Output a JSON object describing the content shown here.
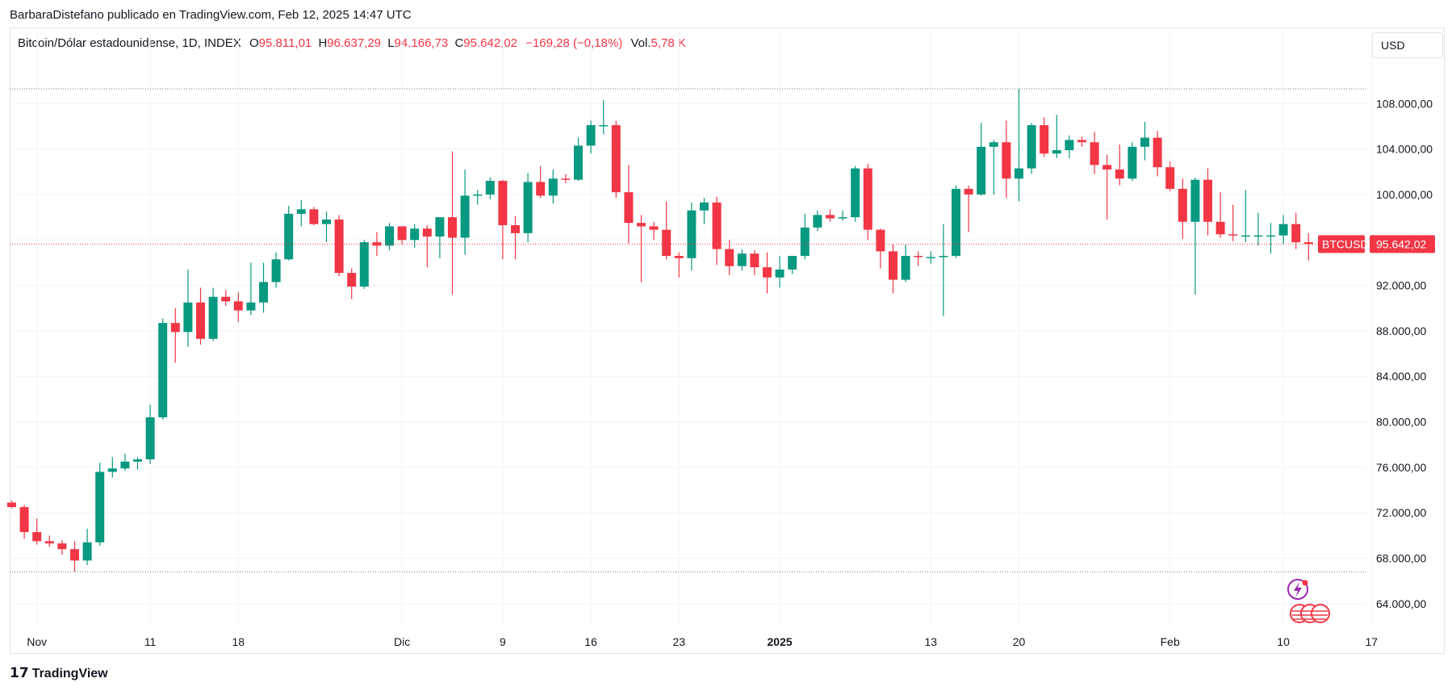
{
  "header": {
    "published": "BarbaraDistefano publicado en TradingView.com, Feb 12, 2025 14:47 UTC",
    "symbol": "Bitcoin/Dólar estadounidense, 1D, INDEX",
    "o_label": "O",
    "o_value": "95.811,01",
    "h_label": "H",
    "h_value": "96.637,29",
    "l_label": "L",
    "l_value": "94.166,73",
    "c_label": "C",
    "c_value": "95.642,02",
    "change": "−169,28 (−0,18%)",
    "vol_label": "Vol.",
    "vol_value": "5,78 K"
  },
  "currency": "USD",
  "footer": {
    "brand": "TradingView"
  },
  "colors": {
    "up": "#089981",
    "down": "#f23645",
    "grid": "#f0f3fa",
    "text": "#131722"
  },
  "chart_data": {
    "type": "candlestick",
    "symbol_label": "BTCUSD",
    "last_price_label": "95.642,02",
    "last_price": 95642.02,
    "ylim": [
      62000,
      112000
    ],
    "y_ticks": [
      64000,
      68000,
      72000,
      76000,
      80000,
      84000,
      88000,
      92000,
      96000,
      100000,
      104000,
      108000
    ],
    "y_tick_labels": [
      "64.000,00",
      "68.000,00",
      "72.000,00",
      "76.000,00",
      "80.000,00",
      "84.000,00",
      "88.000,00",
      "92.000,00",
      "96.000,00",
      "100.000,00",
      "104.000,00",
      "108.000,00"
    ],
    "x_labels": [
      {
        "text": "Nov",
        "day": 2,
        "bold": false
      },
      {
        "text": "11",
        "day": 11,
        "bold": false
      },
      {
        "text": "18",
        "day": 18,
        "bold": false
      },
      {
        "text": "Dic",
        "day": 31,
        "bold": false
      },
      {
        "text": "9",
        "day": 39,
        "bold": false
      },
      {
        "text": "16",
        "day": 46,
        "bold": false
      },
      {
        "text": "23",
        "day": 53,
        "bold": false
      },
      {
        "text": "2025",
        "day": 61,
        "bold": true
      },
      {
        "text": "13",
        "day": 73,
        "bold": false
      },
      {
        "text": "20",
        "day": 80,
        "bold": false
      },
      {
        "text": "Feb",
        "day": 92,
        "bold": false
      },
      {
        "text": "10",
        "day": 101,
        "bold": false
      },
      {
        "text": "17",
        "day": 108,
        "bold": false
      }
    ],
    "range_high": 109300,
    "range_low": 66800,
    "candles": [
      [
        72900,
        73100,
        72400,
        72500
      ],
      [
        72500,
        72700,
        69700,
        70300
      ],
      [
        70300,
        71500,
        69200,
        69500
      ],
      [
        69500,
        70000,
        69000,
        69300
      ],
      [
        69300,
        69600,
        68300,
        68800
      ],
      [
        68800,
        69500,
        66800,
        67800
      ],
      [
        67800,
        70600,
        67400,
        69400
      ],
      [
        69400,
        76400,
        69100,
        75600
      ],
      [
        75600,
        76900,
        75100,
        75900
      ],
      [
        75900,
        77200,
        75700,
        76500
      ],
      [
        76500,
        76900,
        75800,
        76700
      ],
      [
        76700,
        81500,
        76300,
        80400
      ],
      [
        80400,
        89100,
        80200,
        88700
      ],
      [
        88700,
        90000,
        85200,
        87900
      ],
      [
        87900,
        93400,
        86600,
        90500
      ],
      [
        90500,
        91800,
        86800,
        87300
      ],
      [
        87300,
        91800,
        87100,
        91000
      ],
      [
        91000,
        91600,
        90200,
        90600
      ],
      [
        90600,
        91400,
        88800,
        89800
      ],
      [
        89800,
        94000,
        89400,
        90500
      ],
      [
        90500,
        94000,
        89600,
        92300
      ],
      [
        92300,
        94900,
        91800,
        94300
      ],
      [
        94300,
        99000,
        94200,
        98300
      ],
      [
        98300,
        99500,
        97200,
        98700
      ],
      [
        98700,
        98900,
        97300,
        97400
      ],
      [
        97400,
        98500,
        95800,
        97800
      ],
      [
        97800,
        98200,
        92800,
        93100
      ],
      [
        93100,
        93500,
        90800,
        91900
      ],
      [
        91900,
        96000,
        91700,
        95800
      ],
      [
        95800,
        96700,
        94600,
        95500
      ],
      [
        95500,
        97500,
        95100,
        97200
      ],
      [
        97200,
        97200,
        95600,
        96000
      ],
      [
        96000,
        97400,
        95300,
        97000
      ],
      [
        97000,
        97300,
        93600,
        96300
      ],
      [
        96300,
        98000,
        94400,
        98000
      ],
      [
        98000,
        103800,
        91200,
        96200
      ],
      [
        96200,
        102200,
        94700,
        99900
      ],
      [
        99900,
        100400,
        99100,
        100000
      ],
      [
        100000,
        101500,
        99600,
        101200
      ],
      [
        101200,
        101300,
        94300,
        97300
      ],
      [
        97300,
        98100,
        94300,
        96600
      ],
      [
        96600,
        101900,
        95800,
        101100
      ],
      [
        101100,
        102500,
        99700,
        99900
      ],
      [
        99900,
        102200,
        99200,
        101400
      ],
      [
        101400,
        101800,
        101000,
        101300
      ],
      [
        101300,
        105000,
        101200,
        104300
      ],
      [
        104300,
        106500,
        103600,
        106100
      ],
      [
        106100,
        108300,
        105300,
        106100
      ],
      [
        106100,
        106500,
        99700,
        100200
      ],
      [
        100200,
        102600,
        95700,
        97500
      ],
      [
        97500,
        98200,
        92300,
        97200
      ],
      [
        97200,
        97600,
        96000,
        96900
      ],
      [
        96900,
        99400,
        94300,
        94600
      ],
      [
        94600,
        94900,
        92700,
        94400
      ],
      [
        94400,
        99300,
        93300,
        98600
      ],
      [
        98600,
        99700,
        97400,
        99300
      ],
      [
        99300,
        99800,
        93800,
        95200
      ],
      [
        95200,
        96000,
        92900,
        93700
      ],
      [
        93700,
        95200,
        93300,
        94800
      ],
      [
        94800,
        95100,
        92900,
        93600
      ],
      [
        93600,
        94900,
        91300,
        92700
      ],
      [
        92700,
        94600,
        91800,
        93400
      ],
      [
        93400,
        94600,
        93000,
        94600
      ],
      [
        94600,
        98300,
        94300,
        97100
      ],
      [
        97100,
        98600,
        96800,
        98200
      ],
      [
        98200,
        98700,
        97600,
        97900
      ],
      [
        97900,
        98600,
        97700,
        98000
      ],
      [
        98000,
        102500,
        97600,
        102300
      ],
      [
        102300,
        102700,
        96000,
        96900
      ],
      [
        96900,
        97000,
        93500,
        95000
      ],
      [
        95000,
        95600,
        91300,
        92500
      ],
      [
        92500,
        95600,
        92300,
        94600
      ],
      [
        94600,
        95000,
        93700,
        94500
      ],
      [
        94500,
        95000,
        93900,
        94500
      ],
      [
        94500,
        97400,
        89300,
        94600
      ],
      [
        94600,
        100800,
        94400,
        100500
      ],
      [
        100500,
        100800,
        96700,
        100000
      ],
      [
        100000,
        106300,
        99900,
        104200
      ],
      [
        104200,
        104800,
        100000,
        104600
      ],
      [
        104600,
        106500,
        99700,
        101400
      ],
      [
        101400,
        109300,
        99400,
        102300
      ],
      [
        102300,
        106300,
        101800,
        106100
      ],
      [
        106100,
        106800,
        103300,
        103600
      ],
      [
        103600,
        107000,
        103200,
        103900
      ],
      [
        103900,
        105200,
        103200,
        104800
      ],
      [
        104800,
        105100,
        104200,
        104600
      ],
      [
        104600,
        105500,
        101800,
        102600
      ],
      [
        102600,
        103500,
        97800,
        102200
      ],
      [
        102200,
        104400,
        100800,
        101400
      ],
      [
        101400,
        104600,
        101200,
        104200
      ],
      [
        104200,
        106400,
        103000,
        105000
      ],
      [
        105000,
        105600,
        101600,
        102400
      ],
      [
        102400,
        102900,
        100300,
        100500
      ],
      [
        100500,
        101400,
        96100,
        97600
      ],
      [
        97600,
        101500,
        91200,
        101300
      ],
      [
        101300,
        102300,
        96400,
        97600
      ],
      [
        97600,
        100200,
        96200,
        96500
      ],
      [
        96500,
        99100,
        95900,
        96400
      ],
      [
        96400,
        100400,
        95800,
        96400
      ],
      [
        96400,
        98400,
        95500,
        96400
      ],
      [
        96400,
        97500,
        94800,
        96400
      ],
      [
        96400,
        98200,
        95600,
        97400
      ],
      [
        97400,
        98400,
        95200,
        95800
      ],
      [
        95800,
        96600,
        94200,
        95642
      ]
    ]
  }
}
